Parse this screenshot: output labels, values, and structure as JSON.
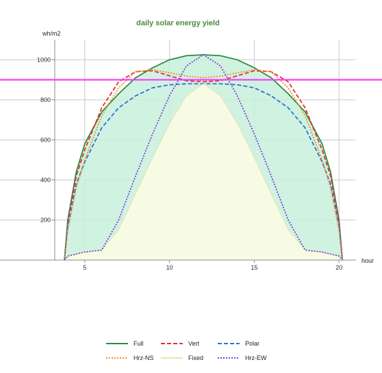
{
  "chart_data": {
    "type": "line",
    "title": "daily solar energy yield",
    "ylabel": "wh/m2",
    "xlabel": "hour",
    "xlim": [
      0,
      21
    ],
    "ylim": [
      0,
      1100
    ],
    "xticks": [
      5,
      10,
      15,
      20
    ],
    "yticks": [
      200,
      400,
      600,
      800,
      1000
    ],
    "grid": true,
    "legend_position": "bottom",
    "reference_line": {
      "y": 900,
      "color": "#ff33ff"
    },
    "series": [
      {
        "name": "Full",
        "color": "#2e8b3e",
        "dash": "solid",
        "fill": "#c8f0dc",
        "x": [
          3.8,
          4,
          4.5,
          5,
          6,
          7,
          8,
          9,
          10,
          11,
          12,
          13,
          14,
          15,
          16,
          17,
          18,
          19,
          19.5,
          20,
          20.2
        ],
        "y": [
          0,
          200,
          440,
          580,
          740,
          830,
          910,
          960,
          1000,
          1020,
          1025,
          1020,
          1000,
          960,
          910,
          830,
          740,
          580,
          440,
          200,
          0
        ]
      },
      {
        "name": "Vert",
        "color": "#e03030",
        "dash": "6,3",
        "x": [
          3.8,
          4,
          4.5,
          5,
          6,
          7,
          8,
          9,
          10,
          11,
          12,
          13,
          14,
          15,
          16,
          17,
          18,
          19,
          19.5,
          20,
          20.2
        ],
        "y": [
          0,
          190,
          420,
          550,
          760,
          890,
          940,
          945,
          920,
          895,
          890,
          895,
          920,
          945,
          940,
          890,
          760,
          550,
          420,
          190,
          0
        ]
      },
      {
        "name": "Polar",
        "color": "#2f6fd6",
        "dash": "6,3",
        "x": [
          3.8,
          4,
          4.5,
          5,
          6,
          7,
          8,
          9,
          10,
          11,
          12,
          13,
          14,
          15,
          16,
          17,
          18,
          19,
          19.5,
          20,
          20.2
        ],
        "y": [
          0,
          170,
          380,
          490,
          660,
          760,
          820,
          860,
          875,
          880,
          880,
          880,
          875,
          860,
          820,
          760,
          660,
          490,
          380,
          170,
          0
        ]
      },
      {
        "name": "Hrz-NS",
        "color": "#f08a24",
        "dash": "2,2",
        "x": [
          3.8,
          4,
          4.5,
          5,
          6,
          7,
          8,
          9,
          10,
          11,
          12,
          13,
          14,
          15,
          16,
          17,
          18,
          19,
          19.5,
          20,
          20.2
        ],
        "y": [
          0,
          150,
          360,
          500,
          720,
          860,
          940,
          950,
          935,
          918,
          910,
          918,
          935,
          950,
          940,
          860,
          720,
          500,
          360,
          150,
          0
        ]
      },
      {
        "name": "Fixed",
        "color": "#e8e4b0",
        "dash": "solid",
        "fill": "#fffde4",
        "x": [
          3.8,
          4,
          5,
          6,
          7,
          8,
          9,
          10,
          11,
          12,
          13,
          14,
          15,
          16,
          17,
          18,
          19,
          20,
          20.2
        ],
        "y": [
          0,
          20,
          40,
          50,
          150,
          330,
          510,
          680,
          820,
          880,
          820,
          680,
          510,
          330,
          150,
          50,
          40,
          20,
          0
        ]
      },
      {
        "name": "Hrz-EW",
        "color": "#7a3fd6",
        "dash": "2,2",
        "x": [
          3.8,
          4,
          5,
          6,
          7,
          8,
          9,
          10,
          11,
          12,
          13,
          14,
          15,
          16,
          17,
          18,
          19,
          20,
          20.2
        ],
        "y": [
          0,
          20,
          40,
          50,
          200,
          420,
          630,
          820,
          970,
          1025,
          970,
          820,
          630,
          420,
          200,
          50,
          40,
          20,
          0
        ]
      }
    ]
  }
}
